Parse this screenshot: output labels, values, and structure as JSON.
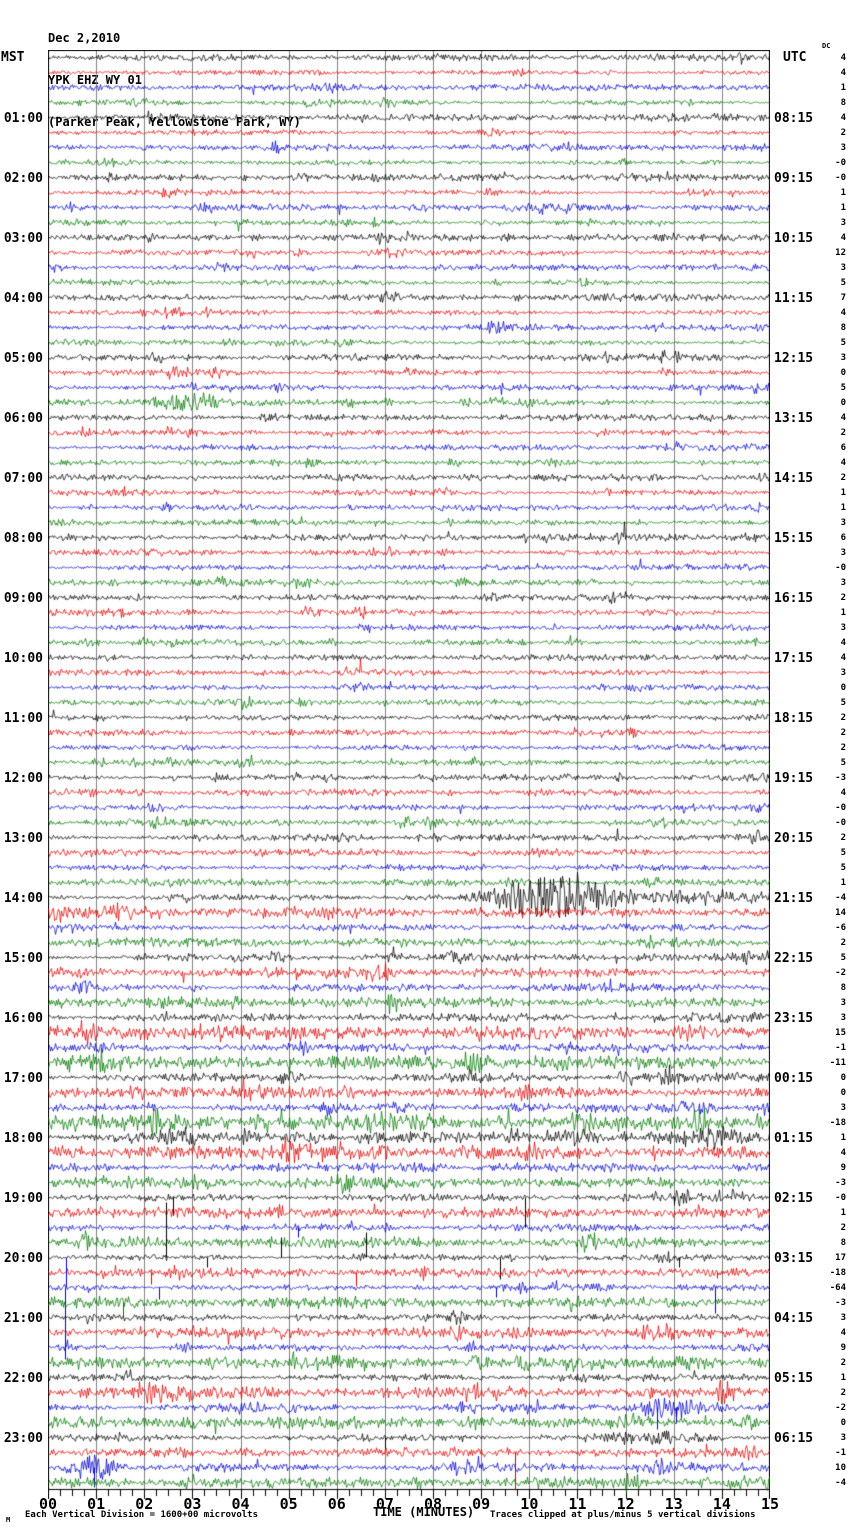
{
  "header": {
    "date": "Dec 2,2010",
    "station": "YPK EHZ WY 01",
    "location": "(Parker Peak, Yellowstone Park, WY)"
  },
  "axes": {
    "left_title": "MST",
    "right_title": "UTC",
    "dc_label": "DC"
  },
  "footer": {
    "corner_mark": "M",
    "scale_note": "Each Vertical Division = 1600+00 microvolts",
    "axis_title": "TIME (MINUTES)",
    "clip_note": "Traces clipped at plus/minus 5 vertical divisions"
  },
  "chart_data": {
    "type": "line",
    "subtype": "helicorder-seismogram",
    "minutes_per_line": 15,
    "lines_per_hour": 4,
    "total_rows": 96,
    "x_axis": {
      "label": "TIME (MINUTES)",
      "ticks": [
        "00",
        "01",
        "02",
        "03",
        "04",
        "05",
        "06",
        "07",
        "08",
        "09",
        "10",
        "11",
        "12",
        "13",
        "14",
        "15"
      ],
      "range": [
        0,
        15
      ],
      "minor_ticks_per_minute": 4,
      "grid": "vertical gray line each minute"
    },
    "trace_colors": {
      "black": "#000000",
      "red": "#dd0000",
      "blue": "#0000cc",
      "green": "#007700",
      "grid": "#808080"
    },
    "row_format": [
      "color",
      "mst_start_label",
      "utc_label",
      "dc_offset",
      "noise_amp_px",
      "events [minute, amp_px, width_min]",
      "spikes [minute, signed_amp_px]"
    ],
    "rows": [
      [
        "black",
        "",
        "",
        "4",
        1.7,
        [],
        []
      ],
      [
        "red",
        "",
        "",
        "4",
        1.7,
        [
          [
            5.45,
            3,
            0.15
          ]
        ],
        []
      ],
      [
        "blue",
        "",
        "",
        "1",
        1.7,
        [],
        []
      ],
      [
        "green",
        "",
        "",
        "8",
        1.7,
        [],
        []
      ],
      [
        "black",
        "01:00",
        "08:15",
        "4",
        1.8,
        [],
        []
      ],
      [
        "red",
        "",
        "",
        "2",
        1.7,
        [],
        []
      ],
      [
        "blue",
        "",
        "",
        "3",
        1.7,
        [],
        []
      ],
      [
        "green",
        "",
        "",
        "-0",
        1.7,
        [],
        []
      ],
      [
        "black",
        "02:00",
        "09:15",
        "-0",
        1.8,
        [],
        []
      ],
      [
        "red",
        "",
        "",
        "1",
        1.7,
        [],
        []
      ],
      [
        "blue",
        "",
        "",
        "1",
        1.7,
        [],
        []
      ],
      [
        "green",
        "",
        "",
        "3",
        1.7,
        [],
        []
      ],
      [
        "black",
        "03:00",
        "10:15",
        "4",
        1.8,
        [],
        []
      ],
      [
        "red",
        "",
        "",
        "12",
        1.8,
        [
          [
            7.1,
            5,
            0.3
          ]
        ],
        []
      ],
      [
        "blue",
        "",
        "",
        "3",
        1.7,
        [],
        []
      ],
      [
        "green",
        "",
        "",
        "5",
        1.7,
        [],
        []
      ],
      [
        "black",
        "04:00",
        "11:15",
        "7",
        1.8,
        [],
        []
      ],
      [
        "red",
        "",
        "",
        "4",
        1.7,
        [],
        []
      ],
      [
        "blue",
        "",
        "",
        "8",
        1.7,
        [],
        []
      ],
      [
        "green",
        "",
        "",
        "5",
        1.7,
        [],
        []
      ],
      [
        "black",
        "05:00",
        "12:15",
        "3",
        1.8,
        [],
        []
      ],
      [
        "red",
        "",
        "",
        "0",
        1.7,
        [],
        []
      ],
      [
        "blue",
        "",
        "",
        "5",
        1.7,
        [],
        []
      ],
      [
        "green",
        "",
        "",
        "0",
        1.8,
        [
          [
            2.2,
            4,
            0.3
          ],
          [
            3.0,
            10,
            0.5
          ]
        ],
        []
      ],
      [
        "black",
        "06:00",
        "13:15",
        "4",
        1.8,
        [],
        []
      ],
      [
        "red",
        "",
        "",
        "2",
        1.7,
        [],
        []
      ],
      [
        "blue",
        "",
        "",
        "6",
        1.7,
        [],
        []
      ],
      [
        "green",
        "",
        "",
        "4",
        1.7,
        [],
        []
      ],
      [
        "black",
        "07:00",
        "14:15",
        "2",
        1.8,
        [],
        []
      ],
      [
        "red",
        "",
        "",
        "1",
        1.7,
        [],
        []
      ],
      [
        "blue",
        "",
        "",
        "1",
        1.7,
        [],
        []
      ],
      [
        "green",
        "",
        "",
        "3",
        1.7,
        [],
        []
      ],
      [
        "black",
        "08:00",
        "15:15",
        "6",
        2.0,
        [
          [
            14.6,
            4,
            0.3
          ]
        ],
        []
      ],
      [
        "red",
        "",
        "",
        "3",
        1.7,
        [],
        []
      ],
      [
        "blue",
        "",
        "",
        "-0",
        1.7,
        [],
        []
      ],
      [
        "green",
        "",
        "",
        "3",
        1.8,
        [
          [
            5.2,
            4,
            0.25
          ]
        ],
        []
      ],
      [
        "black",
        "09:00",
        "16:15",
        "2",
        1.8,
        [],
        []
      ],
      [
        "red",
        "",
        "",
        "1",
        1.7,
        [
          [
            5.6,
            3,
            0.2
          ]
        ],
        []
      ],
      [
        "blue",
        "",
        "",
        "3",
        1.7,
        [],
        []
      ],
      [
        "green",
        "",
        "",
        "4",
        1.7,
        [],
        []
      ],
      [
        "black",
        "10:00",
        "17:15",
        "4",
        1.8,
        [],
        []
      ],
      [
        "red",
        "",
        "",
        "3",
        1.7,
        [],
        []
      ],
      [
        "blue",
        "",
        "",
        "0",
        1.7,
        [
          [
            6.4,
            4,
            0.3
          ]
        ],
        []
      ],
      [
        "green",
        "",
        "",
        "5",
        1.7,
        [],
        []
      ],
      [
        "black",
        "11:00",
        "18:15",
        "2",
        1.8,
        [],
        []
      ],
      [
        "red",
        "",
        "",
        "2",
        1.7,
        [],
        []
      ],
      [
        "blue",
        "",
        "",
        "2",
        1.7,
        [],
        []
      ],
      [
        "green",
        "",
        "",
        "5",
        1.7,
        [],
        []
      ],
      [
        "black",
        "12:00",
        "19:15",
        "-3",
        1.9,
        [],
        []
      ],
      [
        "red",
        "",
        "",
        "4",
        1.8,
        [
          [
            10.1,
            4,
            0.3
          ]
        ],
        []
      ],
      [
        "blue",
        "",
        "",
        "-0",
        1.8,
        [
          [
            14.8,
            5,
            0.2
          ]
        ],
        []
      ],
      [
        "green",
        "",
        "",
        "-0",
        1.8,
        [],
        []
      ],
      [
        "black",
        "13:00",
        "20:15",
        "2",
        2.0,
        [
          [
            6.1,
            5,
            0.4
          ]
        ],
        []
      ],
      [
        "red",
        "",
        "",
        "5",
        1.9,
        [],
        []
      ],
      [
        "blue",
        "",
        "",
        "5",
        1.9,
        [],
        []
      ],
      [
        "green",
        "",
        "",
        "1",
        1.9,
        [
          [
            9.7,
            3,
            0.3
          ]
        ],
        []
      ],
      [
        "black",
        "14:00",
        "21:15",
        "-4",
        2.2,
        [
          [
            9.6,
            9,
            0.3
          ],
          [
            10.45,
            22,
            0.85
          ],
          [
            11.9,
            7,
            1.3
          ],
          [
            13.6,
            4,
            1.5
          ]
        ],
        []
      ],
      [
        "red",
        "",
        "",
        "14",
        2.8,
        [
          [
            1.5,
            4,
            0.3
          ]
        ],
        []
      ],
      [
        "blue",
        "",
        "",
        "-6",
        2.2,
        [
          [
            0.5,
            4,
            0.3
          ]
        ],
        []
      ],
      [
        "green",
        "",
        "",
        "2",
        2.2,
        [],
        []
      ],
      [
        "black",
        "15:00",
        "22:15",
        "5",
        2.4,
        [
          [
            7.0,
            4,
            0.4
          ]
        ],
        []
      ],
      [
        "red",
        "",
        "",
        "-2",
        2.4,
        [
          [
            6.8,
            5,
            0.3
          ]
        ],
        []
      ],
      [
        "blue",
        "",
        "",
        "8",
        2.6,
        [],
        []
      ],
      [
        "green",
        "",
        "",
        "3",
        2.6,
        [
          [
            9.6,
            4,
            0.3
          ]
        ],
        []
      ],
      [
        "black",
        "16:00",
        "23:15",
        "3",
        2.8,
        [],
        []
      ],
      [
        "red",
        "",
        "",
        "15",
        3.4,
        [
          [
            1.2,
            5,
            0.3
          ],
          [
            3.4,
            6,
            0.4
          ],
          [
            13.2,
            6,
            0.4
          ]
        ],
        []
      ],
      [
        "blue",
        "",
        "",
        "-1",
        3.0,
        [
          [
            1.1,
            5,
            0.2
          ]
        ],
        []
      ],
      [
        "green",
        "",
        "",
        "-11",
        3.4,
        [
          [
            1.0,
            8,
            0.3
          ],
          [
            9.0,
            5,
            0.5
          ],
          [
            10.5,
            6,
            0.4
          ]
        ],
        []
      ],
      [
        "black",
        "17:00",
        "00:15",
        "0",
        3.0,
        [
          [
            5.0,
            6,
            0.3
          ],
          [
            8.6,
            5,
            0.3
          ],
          [
            12.9,
            5,
            0.4
          ]
        ],
        []
      ],
      [
        "red",
        "",
        "",
        "0",
        2.8,
        [
          [
            4.3,
            5,
            0.3
          ],
          [
            6.0,
            4,
            0.3
          ]
        ],
        []
      ],
      [
        "blue",
        "",
        "",
        "3",
        2.8,
        [
          [
            7.3,
            5,
            0.3
          ],
          [
            13.3,
            6,
            0.4
          ]
        ],
        []
      ],
      [
        "green",
        "",
        "",
        "-18",
        3.8,
        [
          [
            7.0,
            6,
            0.5
          ],
          [
            11.2,
            8,
            0.4
          ]
        ],
        []
      ],
      [
        "black",
        "18:00",
        "01:15",
        "1",
        4.0,
        [
          [
            2.6,
            7,
            0.4
          ],
          [
            5.3,
            6,
            0.4
          ],
          [
            10.9,
            8,
            0.5
          ],
          [
            13.8,
            7,
            0.4
          ]
        ],
        []
      ],
      [
        "red",
        "",
        "",
        "4",
        3.4,
        [
          [
            5.6,
            8,
            0.5
          ],
          [
            6.8,
            6,
            0.4
          ]
        ],
        []
      ],
      [
        "blue",
        "",
        "",
        "9",
        3.0,
        [
          [
            7.8,
            6,
            0.3
          ]
        ],
        []
      ],
      [
        "green",
        "",
        "",
        "-3",
        2.8,
        [],
        []
      ],
      [
        "black",
        "19:00",
        "02:15",
        "-0",
        2.8,
        [],
        [
          [
            2.6,
            -18
          ],
          [
            9.9,
            -30
          ],
          [
            13.0,
            -8
          ]
        ]
      ],
      [
        "red",
        "",
        "",
        "1",
        2.6,
        [],
        []
      ],
      [
        "blue",
        "",
        "",
        "2",
        2.6,
        [],
        [
          [
            5.2,
            -10
          ]
        ]
      ],
      [
        "green",
        "",
        "",
        "8",
        2.6,
        [],
        [
          [
            11.0,
            -10
          ]
        ]
      ],
      [
        "black",
        "20:00",
        "03:15",
        "17",
        2.0,
        [],
        [
          [
            2.45,
            55
          ],
          [
            3.3,
            -10
          ],
          [
            4.85,
            20
          ],
          [
            6.6,
            25
          ],
          [
            9.4,
            -22
          ],
          [
            13.1,
            -10
          ]
        ]
      ],
      [
        "red",
        "",
        "",
        "-18",
        2.2,
        [],
        [
          [
            2.15,
            -12
          ],
          [
            6.4,
            -14
          ],
          [
            13.9,
            -6
          ]
        ]
      ],
      [
        "blue",
        "",
        "",
        "-64",
        2.4,
        [],
        [
          [
            0.35,
            -72
          ],
          [
            0.38,
            30
          ],
          [
            2.3,
            -12
          ],
          [
            9.3,
            -10
          ],
          [
            13.85,
            -26
          ]
        ]
      ],
      [
        "green",
        "",
        "",
        "-3",
        2.6,
        [],
        [
          [
            1.55,
            -15
          ]
        ]
      ],
      [
        "black",
        "21:00",
        "04:15",
        "3",
        2.6,
        [
          [
            8.5,
            4,
            0.3
          ]
        ],
        []
      ],
      [
        "red",
        "",
        "",
        "4",
        2.8,
        [
          [
            4.4,
            4,
            0.3
          ],
          [
            8.5,
            4,
            0.3
          ],
          [
            12.7,
            8,
            0.4
          ]
        ],
        []
      ],
      [
        "blue",
        "",
        "",
        "9",
        2.6,
        [],
        []
      ],
      [
        "green",
        "",
        "",
        "2",
        2.8,
        [
          [
            3.5,
            5,
            0.3
          ],
          [
            5.8,
            5,
            0.3
          ],
          [
            11.0,
            7,
            0.2
          ],
          [
            13.2,
            10,
            0.4
          ]
        ],
        []
      ],
      [
        "black",
        "22:00",
        "05:15",
        "1",
        2.6,
        [],
        []
      ],
      [
        "red",
        "",
        "",
        "2",
        2.8,
        [
          [
            2.4,
            7,
            0.4
          ],
          [
            9.2,
            4,
            0.3
          ]
        ],
        []
      ],
      [
        "blue",
        "",
        "",
        "-2",
        2.8,
        [
          [
            4.0,
            6,
            0.3
          ],
          [
            12.9,
            12,
            0.5
          ]
        ],
        [
          [
            12.65,
            -22
          ],
          [
            13.05,
            -16
          ]
        ]
      ],
      [
        "green",
        "",
        "",
        "0",
        2.8,
        [
          [
            4.2,
            4,
            0.3
          ],
          [
            12.3,
            5,
            0.3
          ]
        ],
        []
      ],
      [
        "black",
        "23:00",
        "06:15",
        "3",
        2.6,
        [
          [
            12.6,
            6,
            0.8
          ]
        ],
        [
          [
            7.0,
            -12
          ]
        ]
      ],
      [
        "red",
        "",
        "",
        "-1",
        2.2,
        [],
        [
          [
            9.7,
            -38
          ]
        ]
      ],
      [
        "blue",
        "",
        "",
        "10",
        3.0,
        [
          [
            0.95,
            14,
            0.35
          ],
          [
            12.6,
            5,
            0.5
          ]
        ],
        [
          [
            0.95,
            -20
          ]
        ]
      ],
      [
        "green",
        "",
        "",
        "-4",
        2.5,
        [],
        []
      ]
    ]
  }
}
